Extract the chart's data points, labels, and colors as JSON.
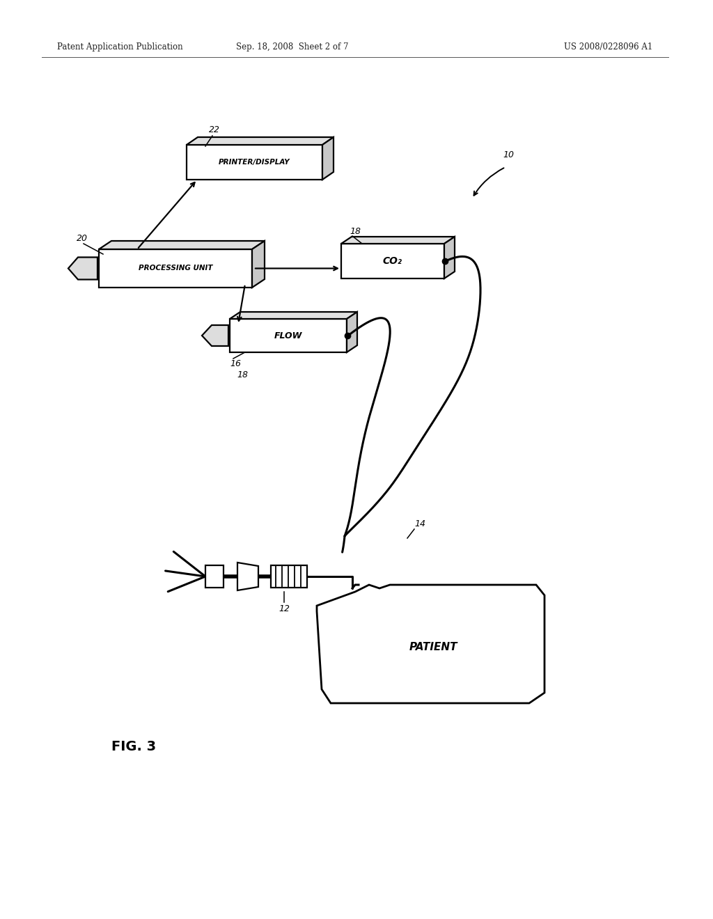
{
  "background_color": "#ffffff",
  "header_left": "Patent Application Publication",
  "header_center": "Sep. 18, 2008  Sheet 2 of 7",
  "header_right": "US 2008/0228096 A1",
  "fig_label": "FIG. 3",
  "labels": {
    "printer_display": "PRINTER/DISPLAY",
    "processing_unit": "PROCESSING UNIT",
    "co2": "CO₂",
    "flow": "FLOW",
    "patient": "PATIENT"
  },
  "ref_numbers": {
    "ten": "10",
    "twelve": "12",
    "fourteen": "14",
    "sixteen": "16",
    "eighteen_top": "18",
    "eighteen_bottom": "18",
    "twenty": "20",
    "twenty_two": "22"
  }
}
